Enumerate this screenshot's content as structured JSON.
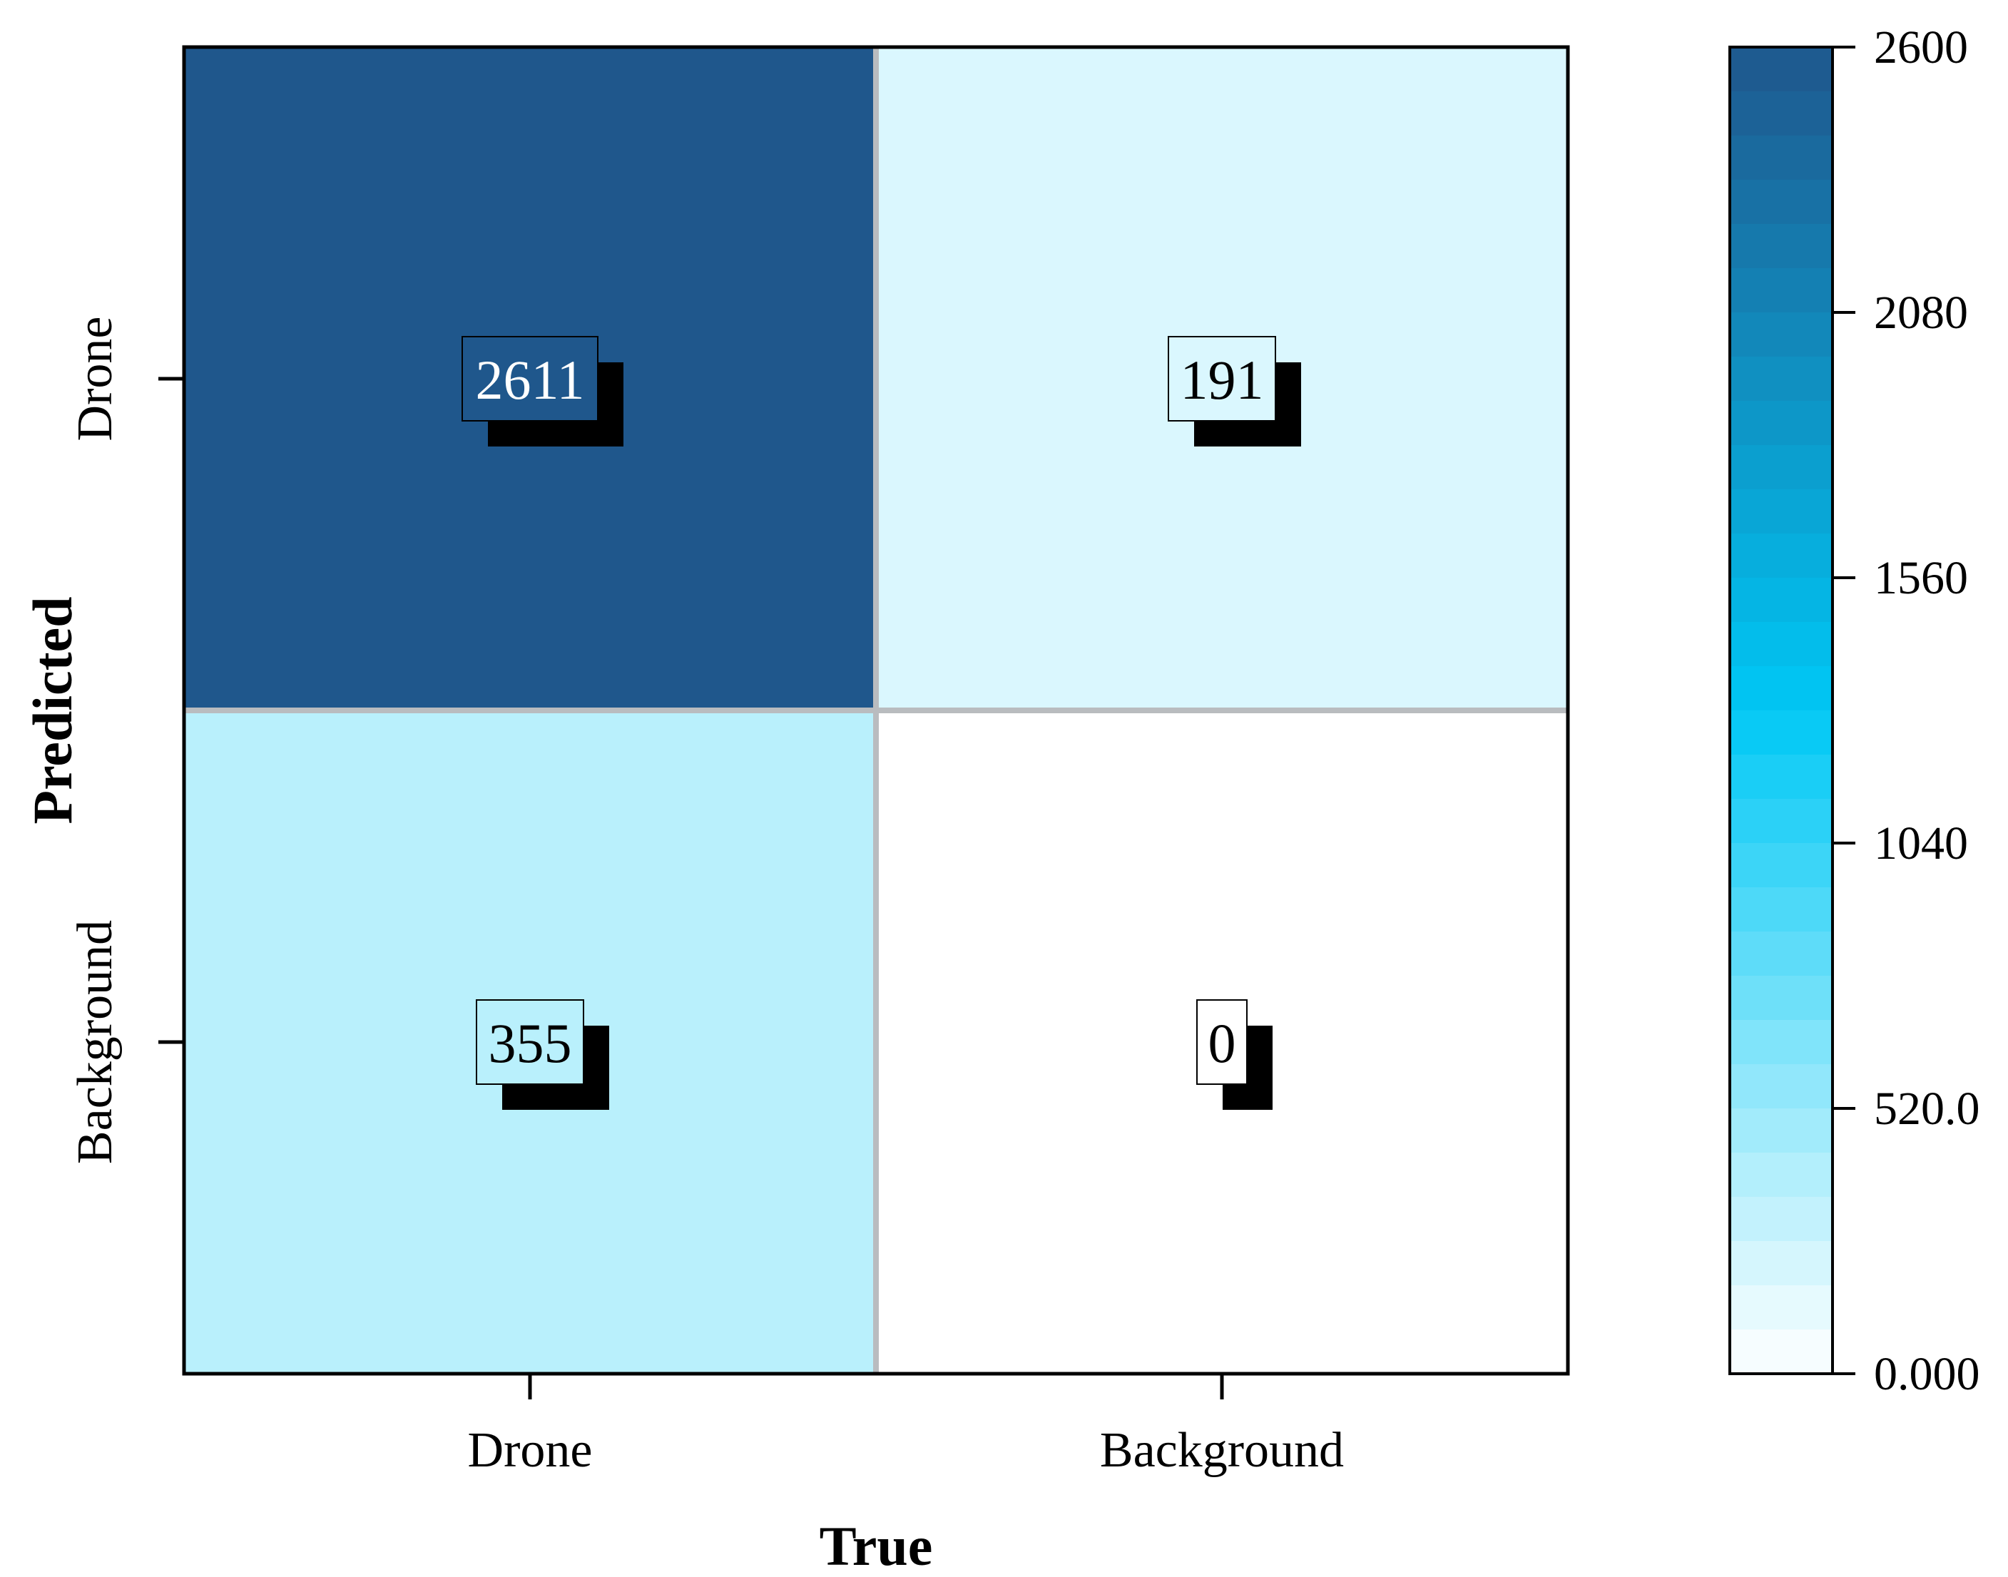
{
  "chart_data": {
    "type": "heatmap",
    "title": "",
    "xlabel": "True",
    "ylabel": "Predicted",
    "x_categories": [
      "Drone",
      "Background"
    ],
    "y_categories": [
      "Drone",
      "Background"
    ],
    "values": [
      [
        2611,
        191
      ],
      [
        355,
        0
      ]
    ],
    "colorbar": {
      "min": 0,
      "max": 2600,
      "ticks": [
        "0.000",
        "520.0",
        "1040",
        "1560",
        "2080",
        "2600"
      ],
      "tick_values": [
        0,
        520,
        1040,
        1560,
        2080,
        2600
      ]
    },
    "colors": {
      "low": "#ffffff",
      "mid": "#00c8f5",
      "high": "#1f578c",
      "grid": "#b9bcbf"
    }
  }
}
